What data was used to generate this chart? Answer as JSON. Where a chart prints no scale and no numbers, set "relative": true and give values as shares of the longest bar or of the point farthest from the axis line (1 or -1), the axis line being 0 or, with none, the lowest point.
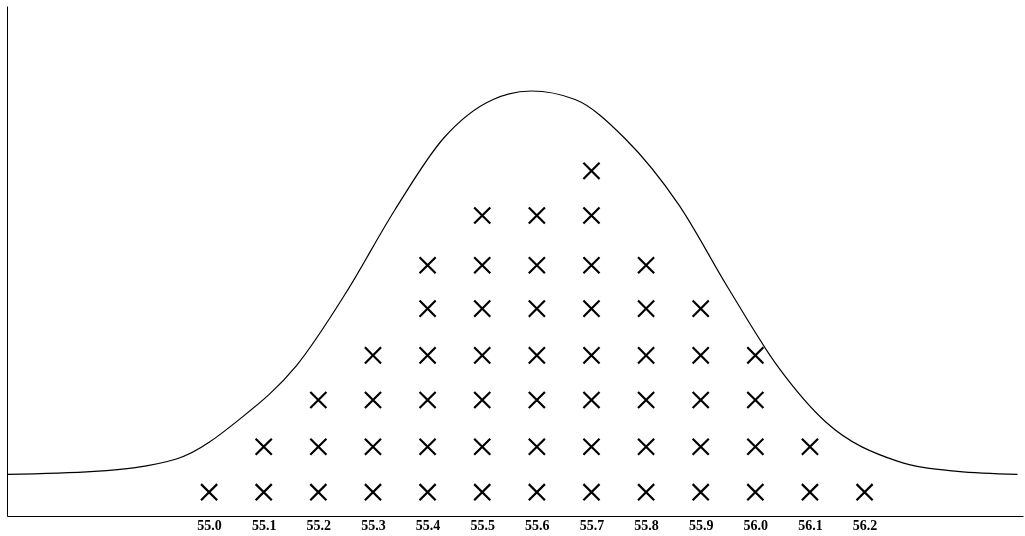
{
  "chart_data": {
    "type": "scatter",
    "relative": true,
    "grid": false,
    "tick_labels": "x",
    "xlim": [
      54.63,
      56.49
    ],
    "xticks": [
      {
        "value": 55,
        "label": "55.0"
      },
      55.1,
      55.2,
      55.3,
      55.4,
      55.5,
      55.6,
      55.7,
      55.8,
      55.9,
      {
        "value": 56,
        "label": "56.0"
      },
      56.1,
      56.2
    ],
    "series": [
      {
        "type": "line",
        "marker": "none",
        "color": "#000000",
        "x": [
          54.63,
          54.79,
          54.94,
          55.06,
          55.16,
          55.25,
          55.34,
          55.43,
          55.52,
          55.59,
          55.67,
          55.76,
          55.86,
          55.95,
          56.04,
          56.13,
          56.26,
          56.37,
          56.48
        ],
        "values": [
          0.098,
          0.105,
          0.134,
          0.232,
          0.354,
          0.524,
          0.72,
          0.89,
          0.98,
          1,
          0.98,
          0.89,
          0.732,
          0.537,
          0.354,
          0.22,
          0.129,
          0.105,
          0.098
        ]
      },
      {
        "marker": "cross",
        "color": "#000000",
        "x": [
          55.0,
          55.1,
          55.1,
          55.2,
          55.2,
          55.2,
          55.3,
          55.3,
          55.3,
          55.3,
          55.4,
          55.4,
          55.4,
          55.4,
          55.4,
          55.4,
          55.5,
          55.5,
          55.5,
          55.5,
          55.5,
          55.5,
          55.5,
          55.6,
          55.6,
          55.6,
          55.6,
          55.6,
          55.6,
          55.6,
          55.7,
          55.7,
          55.7,
          55.7,
          55.7,
          55.7,
          55.7,
          55.7,
          55.8,
          55.8,
          55.8,
          55.8,
          55.8,
          55.8,
          55.9,
          55.9,
          55.9,
          55.9,
          55.9,
          56.0,
          56.0,
          56.0,
          56.0,
          56.1,
          56.1,
          56.2
        ],
        "values": [
          0.056,
          0.056,
          0.163,
          0.056,
          0.163,
          0.273,
          0.056,
          0.163,
          0.273,
          0.378,
          0.056,
          0.163,
          0.273,
          0.378,
          0.488,
          0.59,
          0.056,
          0.163,
          0.273,
          0.378,
          0.488,
          0.59,
          0.707,
          0.056,
          0.163,
          0.273,
          0.378,
          0.488,
          0.59,
          0.707,
          0.056,
          0.163,
          0.273,
          0.378,
          0.488,
          0.59,
          0.707,
          0.812,
          0.056,
          0.163,
          0.273,
          0.378,
          0.488,
          0.59,
          0.056,
          0.163,
          0.273,
          0.378,
          0.488,
          0.056,
          0.163,
          0.273,
          0.378,
          0.056,
          0.163,
          0.056
        ]
      }
    ]
  }
}
